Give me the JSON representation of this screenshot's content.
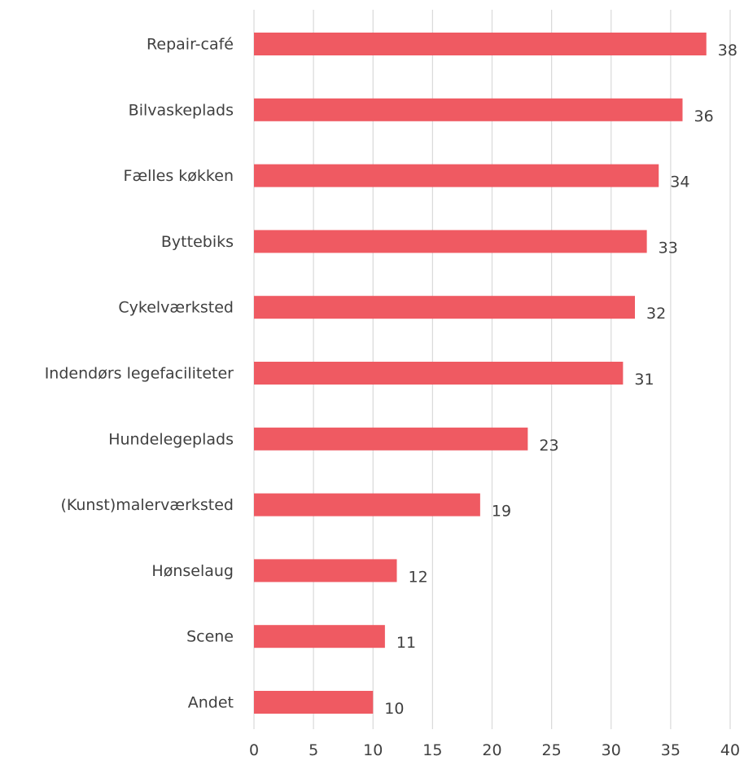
{
  "chart_data": {
    "type": "bar",
    "orientation": "horizontal",
    "categories": [
      "Repair-café",
      "Bilvaskeplads",
      "Fælles køkken",
      "Byttebiks",
      "Cykelværksted",
      "Indendørs legefaciliteter",
      "Hundelegeplads",
      "(Kunst)malerværksted",
      "Hønselaug",
      "Scene",
      "Andet"
    ],
    "values": [
      38,
      36,
      34,
      33,
      32,
      31,
      23,
      19,
      12,
      11,
      10
    ],
    "xticks": [
      "0",
      "5",
      "10",
      "15",
      "20",
      "25",
      "30",
      "35",
      "40"
    ],
    "xlim": [
      0,
      40
    ],
    "title": "",
    "xlabel": "",
    "ylabel": "",
    "grid": "vertical",
    "legend": "none",
    "bar_color": "#ef5a62",
    "grid_color": "#d9d9d9",
    "text_color": "#404040"
  }
}
